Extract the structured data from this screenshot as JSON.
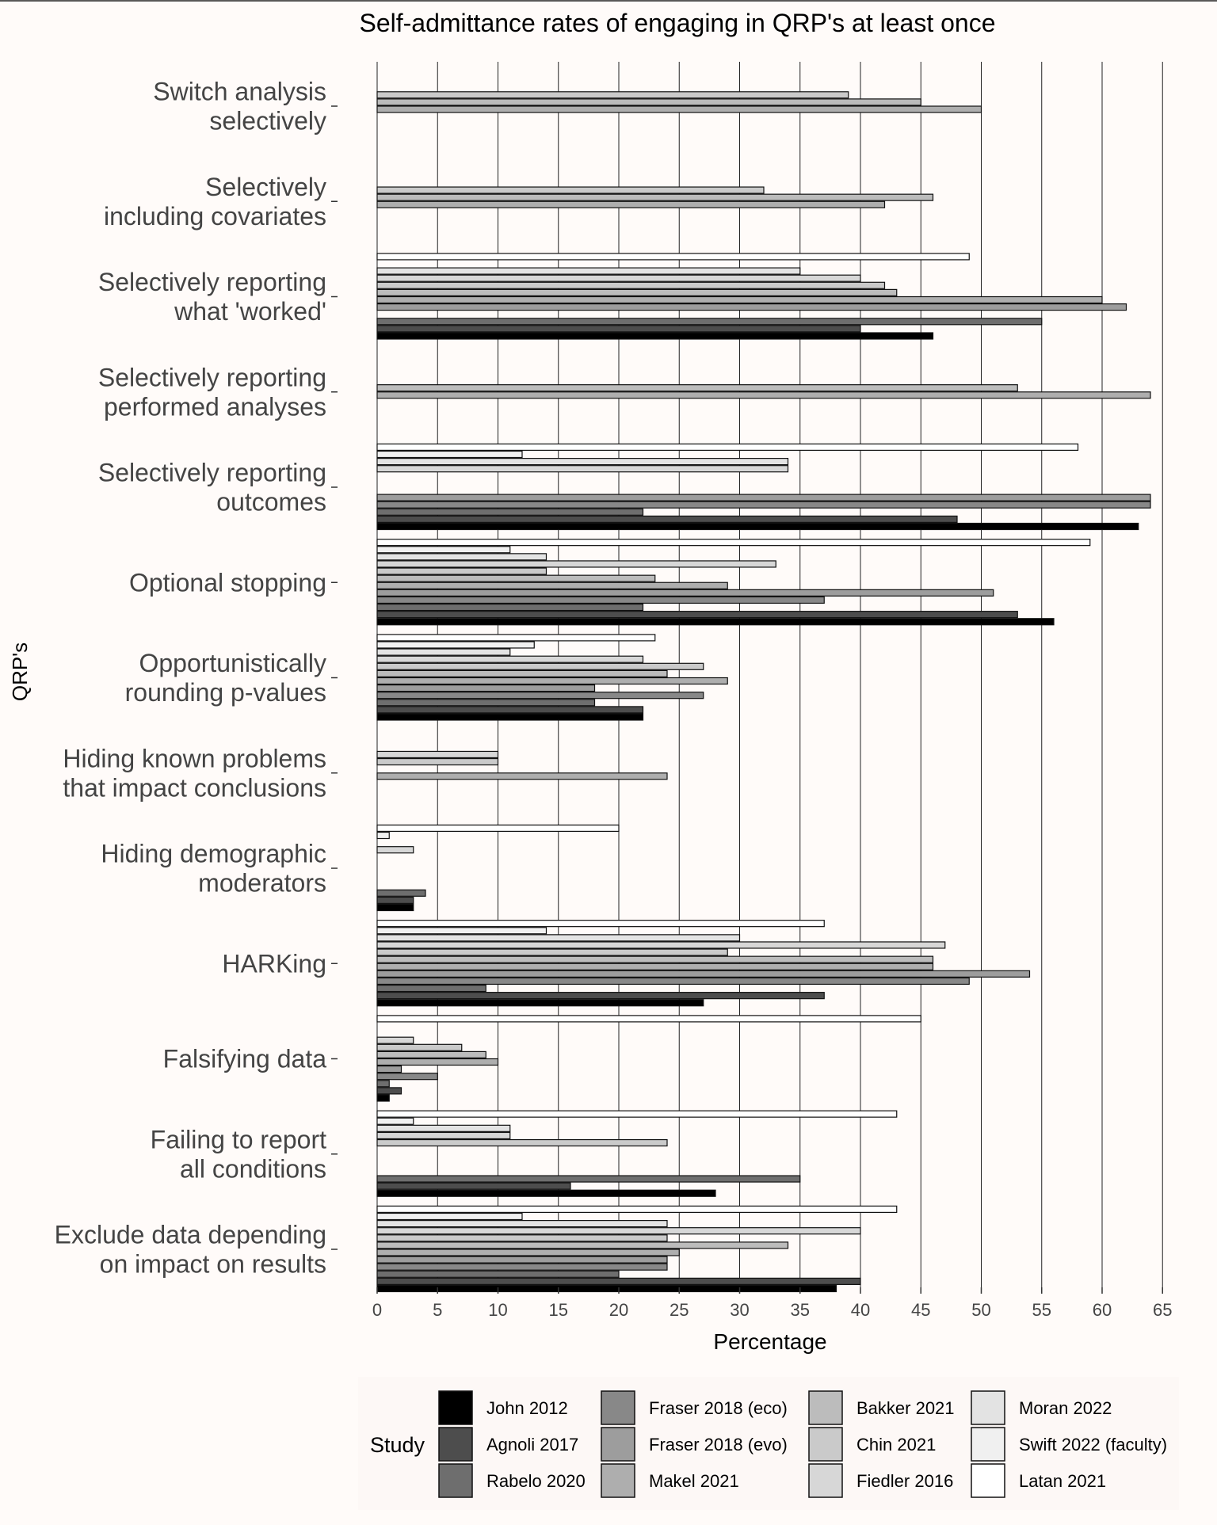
{
  "chart_data": {
    "type": "bar",
    "orientation": "horizontal",
    "title": "Self-admittance rates of engaging in QRP's at least once",
    "xlabel": "Percentage",
    "ylabel": "QRP's",
    "xlim": [
      0,
      65
    ],
    "xticks": [
      "0",
      "5",
      "10",
      "15",
      "20",
      "25",
      "30",
      "35",
      "40",
      "45",
      "50",
      "55",
      "60",
      "65"
    ],
    "grid": "vertical major lines",
    "legend_title": "Study",
    "legend_position": "bottom",
    "series": [
      {
        "name": "John 2012",
        "color": "#000000"
      },
      {
        "name": "Agnoli 2017",
        "color": "#4d4d4d"
      },
      {
        "name": "Rabelo 2020",
        "color": "#6e6e6e"
      },
      {
        "name": "Fraser 2018 (eco)",
        "color": "#888888"
      },
      {
        "name": "Fraser 2018 (evo)",
        "color": "#9d9d9d"
      },
      {
        "name": "Makel 2021",
        "color": "#aeaeae"
      },
      {
        "name": "Bakker 2021",
        "color": "#bcbcbc"
      },
      {
        "name": "Chin 2021",
        "color": "#cacaca"
      },
      {
        "name": "Fiedler 2016",
        "color": "#d7d7d7"
      },
      {
        "name": "Moran 2022",
        "color": "#e3e3e3"
      },
      {
        "name": "Swift 2022 (faculty)",
        "color": "#f0f0f0"
      },
      {
        "name": "Latan 2021",
        "color": "#ffffff"
      }
    ],
    "categories": [
      {
        "label": [
          "Switch analysis",
          "selectively"
        ],
        "values": [
          null,
          null,
          null,
          null,
          null,
          50,
          45,
          39,
          null,
          null,
          null,
          null
        ]
      },
      {
        "label": [
          "Selectively",
          "including covariates"
        ],
        "values": [
          null,
          null,
          null,
          null,
          null,
          42,
          46,
          32,
          null,
          null,
          null,
          null
        ]
      },
      {
        "label": [
          "Selectively reporting",
          "what 'worked'"
        ],
        "values": [
          46,
          40,
          55,
          null,
          62,
          60,
          43,
          42,
          40,
          35,
          null,
          49
        ]
      },
      {
        "label": [
          "Selectively reporting",
          "performed analyses"
        ],
        "values": [
          null,
          null,
          null,
          null,
          null,
          64,
          53,
          null,
          null,
          null,
          null,
          null
        ]
      },
      {
        "label": [
          "Selectively reporting",
          "outcomes"
        ],
        "values": [
          63,
          48,
          22,
          64,
          64,
          null,
          null,
          null,
          34,
          34,
          12,
          58
        ]
      },
      {
        "label": [
          "Optional stopping"
        ],
        "values": [
          56,
          53,
          22,
          37,
          51,
          29,
          23,
          14,
          33,
          14,
          11,
          59
        ]
      },
      {
        "label": [
          "Opportunistically",
          "rounding p-values"
        ],
        "values": [
          22,
          22,
          18,
          27,
          18,
          29,
          24,
          27,
          22,
          11,
          13,
          23
        ]
      },
      {
        "label": [
          "Hiding known problems",
          "that impact conclusions"
        ],
        "values": [
          null,
          null,
          null,
          null,
          null,
          24,
          null,
          10,
          10,
          null,
          null,
          null
        ]
      },
      {
        "label": [
          "Hiding demographic",
          "moderators"
        ],
        "values": [
          3,
          3,
          4,
          null,
          null,
          null,
          null,
          null,
          3,
          null,
          1,
          20
        ]
      },
      {
        "label": [
          "HARKing"
        ],
        "values": [
          27,
          37,
          9,
          49,
          54,
          46,
          46,
          29,
          47,
          30,
          14,
          37
        ]
      },
      {
        "label": [
          "Falsifying data"
        ],
        "values": [
          1,
          2,
          1,
          5,
          2,
          10,
          9,
          7,
          3,
          null,
          null,
          45
        ]
      },
      {
        "label": [
          "Failing to report",
          "all conditions"
        ],
        "values": [
          28,
          16,
          35,
          null,
          null,
          null,
          null,
          24,
          11,
          11,
          3,
          43
        ]
      },
      {
        "label": [
          "Exclude data depending",
          "on impact on results"
        ],
        "values": [
          38,
          40,
          20,
          24,
          24,
          25,
          34,
          24,
          40,
          24,
          12,
          43
        ]
      }
    ]
  }
}
